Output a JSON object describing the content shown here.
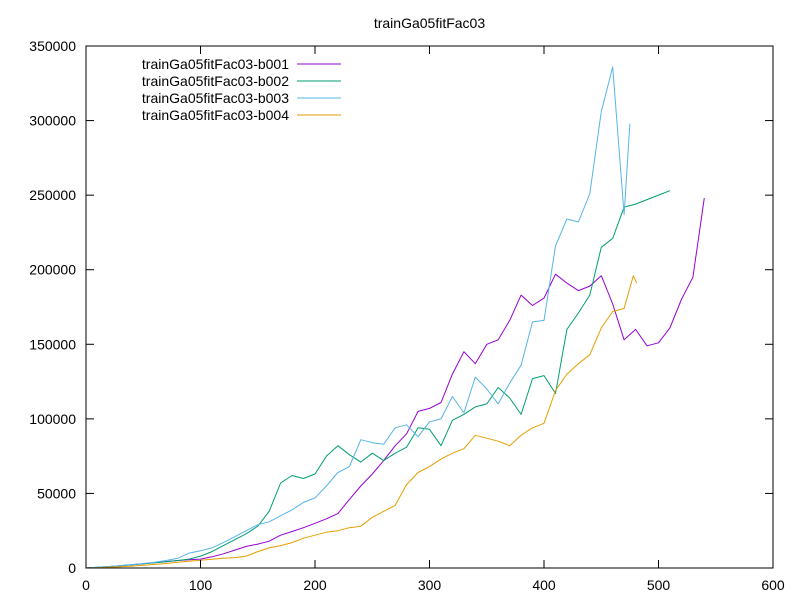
{
  "chart_data": {
    "type": "line",
    "title": "trainGa05fitFac03",
    "xlabel": "",
    "ylabel": "",
    "xlim": [
      0,
      600
    ],
    "ylim": [
      0,
      350000
    ],
    "xticks": [
      0,
      100,
      200,
      300,
      400,
      500,
      600
    ],
    "yticks": [
      0,
      50000,
      100000,
      150000,
      200000,
      250000,
      300000,
      350000
    ],
    "grid": false,
    "legend_position": "top-left",
    "series": [
      {
        "name": "trainGa05fitFac03-b001",
        "color": "#9400d3",
        "points": [
          [
            0,
            0
          ],
          [
            10,
            400
          ],
          [
            20,
            900
          ],
          [
            30,
            1500
          ],
          [
            40,
            2200
          ],
          [
            50,
            2900
          ],
          [
            60,
            3600
          ],
          [
            70,
            4300
          ],
          [
            80,
            5000
          ],
          [
            90,
            5500
          ],
          [
            100,
            6000
          ],
          [
            110,
            7500
          ],
          [
            120,
            9500
          ],
          [
            130,
            12000
          ],
          [
            140,
            14500
          ],
          [
            150,
            16000
          ],
          [
            160,
            18000
          ],
          [
            170,
            22000
          ],
          [
            180,
            24500
          ],
          [
            190,
            27000
          ],
          [
            200,
            30000
          ],
          [
            210,
            33000
          ],
          [
            220,
            36500
          ],
          [
            230,
            46000
          ],
          [
            240,
            55000
          ],
          [
            250,
            63000
          ],
          [
            260,
            72000
          ],
          [
            270,
            82000
          ],
          [
            280,
            90000
          ],
          [
            290,
            105000
          ],
          [
            300,
            107000
          ],
          [
            310,
            111000
          ],
          [
            320,
            130000
          ],
          [
            330,
            145000
          ],
          [
            340,
            137000
          ],
          [
            350,
            150000
          ],
          [
            360,
            153000
          ],
          [
            370,
            166000
          ],
          [
            380,
            183000
          ],
          [
            390,
            176000
          ],
          [
            400,
            181000
          ],
          [
            410,
            197000
          ],
          [
            420,
            191000
          ],
          [
            430,
            186000
          ],
          [
            440,
            189000
          ],
          [
            450,
            196000
          ],
          [
            460,
            177000
          ],
          [
            470,
            153000
          ],
          [
            480,
            160000
          ],
          [
            490,
            149000
          ],
          [
            500,
            151000
          ],
          [
            510,
            161000
          ],
          [
            520,
            180000
          ],
          [
            530,
            195000
          ],
          [
            540,
            248000
          ]
        ]
      },
      {
        "name": "trainGa05fitFac03-b002",
        "color": "#009e73",
        "points": [
          [
            0,
            0
          ],
          [
            10,
            500
          ],
          [
            20,
            1000
          ],
          [
            30,
            1500
          ],
          [
            40,
            2100
          ],
          [
            50,
            2800
          ],
          [
            60,
            3500
          ],
          [
            70,
            4200
          ],
          [
            80,
            5000
          ],
          [
            90,
            6000
          ],
          [
            100,
            8000
          ],
          [
            110,
            11000
          ],
          [
            120,
            15000
          ],
          [
            130,
            19000
          ],
          [
            140,
            23000
          ],
          [
            150,
            28000
          ],
          [
            160,
            38000
          ],
          [
            170,
            57000
          ],
          [
            180,
            62000
          ],
          [
            190,
            60000
          ],
          [
            200,
            63000
          ],
          [
            210,
            75000
          ],
          [
            220,
            82000
          ],
          [
            230,
            76000
          ],
          [
            240,
            71000
          ],
          [
            250,
            77000
          ],
          [
            260,
            72000
          ],
          [
            270,
            77000
          ],
          [
            280,
            81000
          ],
          [
            290,
            94000
          ],
          [
            300,
            93000
          ],
          [
            310,
            82000
          ],
          [
            320,
            99000
          ],
          [
            330,
            103000
          ],
          [
            340,
            108000
          ],
          [
            350,
            110000
          ],
          [
            360,
            121000
          ],
          [
            370,
            114000
          ],
          [
            380,
            103000
          ],
          [
            390,
            127000
          ],
          [
            400,
            129000
          ],
          [
            410,
            117000
          ],
          [
            420,
            160000
          ],
          [
            430,
            171000
          ],
          [
            440,
            183000
          ],
          [
            450,
            215000
          ],
          [
            460,
            221000
          ],
          [
            470,
            242000
          ],
          [
            480,
            244000
          ],
          [
            490,
            247000
          ],
          [
            500,
            250000
          ],
          [
            510,
            253000
          ]
        ]
      },
      {
        "name": "trainGa05fitFac03-b003",
        "color": "#56b4e9",
        "points": [
          [
            0,
            0
          ],
          [
            10,
            500
          ],
          [
            20,
            1000
          ],
          [
            30,
            1600
          ],
          [
            40,
            2300
          ],
          [
            50,
            3000
          ],
          [
            60,
            3800
          ],
          [
            70,
            5000
          ],
          [
            80,
            6500
          ],
          [
            90,
            10000
          ],
          [
            100,
            11500
          ],
          [
            110,
            13500
          ],
          [
            120,
            17000
          ],
          [
            130,
            21000
          ],
          [
            140,
            25000
          ],
          [
            150,
            29000
          ],
          [
            160,
            31000
          ],
          [
            170,
            35000
          ],
          [
            180,
            39000
          ],
          [
            190,
            44000
          ],
          [
            200,
            47000
          ],
          [
            210,
            55000
          ],
          [
            220,
            64000
          ],
          [
            230,
            68000
          ],
          [
            240,
            86000
          ],
          [
            250,
            84000
          ],
          [
            260,
            83000
          ],
          [
            270,
            94000
          ],
          [
            280,
            96000
          ],
          [
            290,
            88000
          ],
          [
            300,
            98000
          ],
          [
            310,
            100000
          ],
          [
            320,
            115000
          ],
          [
            330,
            104000
          ],
          [
            340,
            128000
          ],
          [
            350,
            120000
          ],
          [
            360,
            110000
          ],
          [
            370,
            124000
          ],
          [
            380,
            136000
          ],
          [
            390,
            165000
          ],
          [
            400,
            166000
          ],
          [
            410,
            216000
          ],
          [
            420,
            234000
          ],
          [
            430,
            232000
          ],
          [
            440,
            251000
          ],
          [
            450,
            306000
          ],
          [
            460,
            336000
          ],
          [
            470,
            237000
          ],
          [
            475,
            298000
          ]
        ]
      },
      {
        "name": "trainGa05fitFac03-b004",
        "color": "#e69f00",
        "points": [
          [
            0,
            0
          ],
          [
            10,
            200
          ],
          [
            20,
            500
          ],
          [
            30,
            900
          ],
          [
            40,
            1300
          ],
          [
            50,
            1800
          ],
          [
            60,
            2400
          ],
          [
            70,
            3000
          ],
          [
            80,
            3800
          ],
          [
            90,
            4500
          ],
          [
            100,
            5200
          ],
          [
            110,
            5800
          ],
          [
            120,
            6500
          ],
          [
            130,
            7000
          ],
          [
            140,
            8000
          ],
          [
            150,
            11000
          ],
          [
            160,
            13500
          ],
          [
            170,
            15000
          ],
          [
            180,
            17000
          ],
          [
            190,
            20000
          ],
          [
            200,
            22000
          ],
          [
            210,
            24000
          ],
          [
            220,
            25000
          ],
          [
            230,
            27000
          ],
          [
            240,
            28000
          ],
          [
            250,
            34000
          ],
          [
            260,
            38000
          ],
          [
            270,
            42000
          ],
          [
            280,
            56000
          ],
          [
            290,
            64000
          ],
          [
            300,
            68000
          ],
          [
            310,
            73000
          ],
          [
            320,
            77000
          ],
          [
            330,
            80000
          ],
          [
            340,
            89000
          ],
          [
            350,
            87000
          ],
          [
            360,
            85000
          ],
          [
            370,
            82000
          ],
          [
            380,
            89000
          ],
          [
            390,
            94000
          ],
          [
            400,
            97000
          ],
          [
            410,
            119000
          ],
          [
            420,
            130000
          ],
          [
            430,
            137000
          ],
          [
            440,
            143000
          ],
          [
            450,
            161000
          ],
          [
            460,
            172000
          ],
          [
            470,
            174000
          ],
          [
            478,
            196000
          ],
          [
            481,
            191000
          ]
        ]
      }
    ]
  }
}
